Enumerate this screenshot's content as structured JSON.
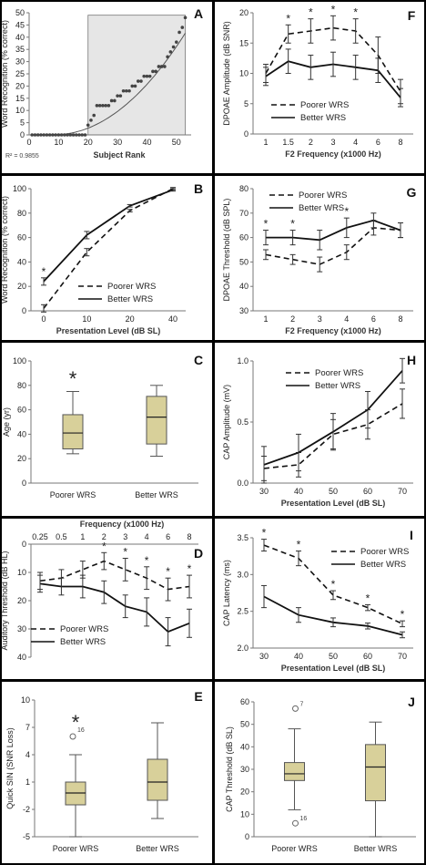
{
  "colors": {
    "box_fill": "#d8d09a",
    "box_stroke": "#555555",
    "shade": "#e6e6e6",
    "line": "#111111"
  },
  "charts": {
    "A": {
      "letter": "A",
      "type": "scatter",
      "xlabel": "Subject Rank",
      "ylabel": "Word Recognition (% correct)",
      "xlim": [
        0,
        55
      ],
      "ylim": [
        0,
        50
      ],
      "xticks": [
        "0",
        "10",
        "20",
        "30",
        "40",
        "50"
      ],
      "yticks": [
        "0",
        "5",
        "10",
        "15",
        "20",
        "25",
        "30",
        "35",
        "40",
        "45",
        "50"
      ],
      "r2": "R² = 0.9855",
      "shade_x": [
        20,
        53
      ],
      "shade_y": [
        0,
        49
      ],
      "x": [
        1,
        2,
        3,
        4,
        5,
        6,
        7,
        8,
        9,
        10,
        11,
        12,
        13,
        14,
        15,
        16,
        17,
        18,
        19,
        20,
        21,
        22,
        23,
        24,
        25,
        26,
        27,
        28,
        29,
        30,
        31,
        32,
        33,
        34,
        35,
        36,
        37,
        38,
        39,
        40,
        41,
        42,
        43,
        44,
        45,
        46,
        47,
        48,
        49,
        50,
        51,
        52,
        53
      ],
      "y": [
        0,
        0,
        0,
        0,
        0,
        0,
        0,
        0,
        0,
        0,
        0,
        0,
        0,
        0,
        0,
        0,
        0,
        0,
        0,
        4,
        6,
        8,
        12,
        12,
        12,
        12,
        12,
        14,
        14,
        16,
        16,
        18,
        18,
        18,
        20,
        20,
        22,
        22,
        24,
        24,
        24,
        26,
        26,
        28,
        28,
        28,
        32,
        34,
        36,
        38,
        42,
        44,
        48
      ]
    },
    "B": {
      "letter": "B",
      "type": "line",
      "xlabel": "Presentation Level (dB SL)",
      "ylabel": "Word Recognition (% correct)",
      "ylim": [
        0,
        100
      ],
      "categories": [
        "0",
        "10",
        "20",
        "40"
      ],
      "yticks": [
        "0",
        "20",
        "40",
        "60",
        "80",
        "100"
      ],
      "stars": [
        "*",
        "",
        "",
        ""
      ],
      "series": [
        {
          "name": "Poorer WRS",
          "dash": true,
          "values": [
            2,
            48,
            82,
            100
          ],
          "err": [
            3,
            3,
            1,
            1
          ]
        },
        {
          "name": "Better WRS",
          "dash": false,
          "values": [
            24,
            62,
            86,
            99
          ],
          "err": [
            3,
            3,
            1,
            1
          ]
        }
      ]
    },
    "C": {
      "letter": "C",
      "type": "box",
      "ylabel": "Age (yr)",
      "ylim": [
        0,
        100
      ],
      "yticks": [
        "0",
        "20",
        "40",
        "60",
        "80",
        "100"
      ],
      "categories": [
        "Poorer WRS",
        "Better WRS"
      ],
      "star": "*",
      "boxes": [
        {
          "min": 24,
          "q1": 28,
          "med": 41,
          "q3": 56,
          "max": 75
        },
        {
          "min": 22,
          "q1": 32,
          "med": 54,
          "q3": 71,
          "max": 80
        }
      ]
    },
    "D": {
      "letter": "D",
      "type": "line",
      "top_label": "Frequency (x1000 Hz)",
      "ylabel": "Auditory Threshold (dB HL)",
      "ylim": [
        0,
        40
      ],
      "categories": [
        "0.25",
        "0.5",
        "1",
        "2",
        "3",
        "4",
        "6",
        "8"
      ],
      "yticks": [
        "0",
        "10",
        "20",
        "30",
        "40"
      ],
      "stars": [
        "",
        "",
        "",
        "*",
        "*",
        "*",
        "*",
        "*"
      ],
      "series": [
        {
          "name": "Poorer WRS",
          "dash": true,
          "values": [
            13,
            12,
            9,
            6,
            9,
            12,
            16,
            15
          ],
          "err": [
            3,
            3,
            3,
            3,
            4,
            4,
            4,
            4
          ]
        },
        {
          "name": "Better WRS",
          "dash": false,
          "values": [
            14,
            15,
            15,
            17,
            22,
            24,
            31,
            28
          ],
          "err": [
            3,
            3,
            4,
            4,
            4,
            5,
            5,
            5
          ]
        }
      ]
    },
    "E": {
      "letter": "E",
      "type": "box",
      "ylabel": "Quick SIN (SNR Loss)",
      "ylim": [
        -5,
        10
      ],
      "yticks": [
        "-5",
        "-2",
        "1",
        "4",
        "7",
        "10"
      ],
      "categories": [
        "Poorer WRS",
        "Better WRS"
      ],
      "star": "*",
      "outlier_label": "16",
      "outlier": 6,
      "boxes": [
        {
          "min": -5,
          "q1": -1.5,
          "med": -0.2,
          "q3": 1,
          "max": 4
        },
        {
          "min": -3,
          "q1": -1,
          "med": 1,
          "q3": 3.5,
          "max": 7.5
        }
      ]
    },
    "F": {
      "letter": "F",
      "type": "line",
      "xlabel": "F2 Frequency (x1000 Hz)",
      "ylabel": "DPOAE Amplitude (dB SNR)",
      "ylim": [
        0,
        20
      ],
      "categories": [
        "1",
        "1.5",
        "2",
        "3",
        "4",
        "6",
        "8"
      ],
      "yticks": [
        "0",
        "5",
        "10",
        "15",
        "20"
      ],
      "stars": [
        "",
        "*",
        "*",
        "*",
        "*",
        "",
        ""
      ],
      "series": [
        {
          "name": "Poorer WRS",
          "dash": true,
          "values": [
            10,
            16.5,
            17,
            17.5,
            17,
            13,
            7
          ],
          "err": [
            1.5,
            1.5,
            2,
            2,
            2,
            3,
            2
          ]
        },
        {
          "name": "Better WRS",
          "dash": false,
          "values": [
            9.5,
            12,
            11,
            11.5,
            11,
            10.5,
            6
          ],
          "err": [
            1.5,
            2,
            2,
            2,
            2,
            2,
            1.5
          ]
        }
      ]
    },
    "G": {
      "letter": "G",
      "type": "line",
      "xlabel": "F2 Frequency (x1000 Hz)",
      "ylabel": "DPOAE Threshold (dB SPL)",
      "ylim": [
        30,
        80
      ],
      "categories": [
        "1",
        "2",
        "3",
        "4",
        "6",
        "8"
      ],
      "yticks": [
        "30",
        "40",
        "50",
        "60",
        "70",
        "80"
      ],
      "stars": [
        "*",
        "*",
        "",
        "*",
        "",
        ""
      ],
      "series": [
        {
          "name": "Poorer WRS",
          "dash": true,
          "values": [
            53,
            51,
            49,
            54,
            64,
            63
          ],
          "err": [
            2,
            2,
            3,
            3,
            3,
            3
          ]
        },
        {
          "name": "Better WRS",
          "dash": false,
          "values": [
            60,
            60,
            59,
            64,
            67,
            63
          ],
          "err": [
            3,
            3,
            4,
            4,
            3,
            3
          ]
        }
      ]
    },
    "H": {
      "letter": "H",
      "type": "line",
      "xlabel": "Presentation Level (dB SL)",
      "ylabel": "CAP Amplitude (mV)",
      "ylim": [
        0,
        1.0
      ],
      "categories": [
        "30",
        "40",
        "50",
        "60",
        "70"
      ],
      "yticks": [
        "0.0",
        "0.5",
        "1.0"
      ],
      "series": [
        {
          "name": "Poorer WRS",
          "dash": true,
          "values": [
            0.12,
            0.15,
            0.4,
            0.48,
            0.65
          ],
          "err": [
            0.1,
            0.1,
            0.12,
            0.12,
            0.12
          ]
        },
        {
          "name": "Better WRS",
          "dash": false,
          "values": [
            0.15,
            0.25,
            0.42,
            0.6,
            0.92
          ],
          "err": [
            0.15,
            0.15,
            0.15,
            0.15,
            0.1
          ]
        }
      ]
    },
    "I": {
      "letter": "I",
      "type": "line",
      "xlabel": "Presentation Level (dB SL)",
      "ylabel": "CAP Latency (ms)",
      "ylim": [
        2.0,
        3.5
      ],
      "categories": [
        "30",
        "40",
        "50",
        "60",
        "70"
      ],
      "yticks": [
        "2.0",
        "2.5",
        "3.0",
        "3.5"
      ],
      "stars": [
        "*",
        "*",
        "*",
        "*",
        "*"
      ],
      "series": [
        {
          "name": "Poorer WRS",
          "dash": true,
          "values": [
            3.4,
            3.22,
            2.72,
            2.55,
            2.33
          ],
          "err": [
            0.08,
            0.1,
            0.06,
            0.04,
            0.04
          ]
        },
        {
          "name": "Better WRS",
          "dash": false,
          "values": [
            2.7,
            2.45,
            2.35,
            2.3,
            2.18
          ],
          "err": [
            0.15,
            0.1,
            0.06,
            0.04,
            0.04
          ]
        }
      ]
    },
    "J": {
      "letter": "J",
      "type": "box",
      "ylabel": "CAP Threshold (dB SL)",
      "ylim": [
        0,
        60
      ],
      "yticks": [
        "0",
        "10",
        "20",
        "30",
        "40",
        "50",
        "60"
      ],
      "categories": [
        "Poorer WRS",
        "Better WRS"
      ],
      "outliers": [
        {
          "v": 57,
          "label": "7"
        },
        {
          "v": 6,
          "label": "16"
        }
      ],
      "boxes": [
        {
          "min": 12,
          "q1": 25,
          "med": 28,
          "q3": 33,
          "max": 48
        },
        {
          "min": 0,
          "q1": 16,
          "med": 31,
          "q3": 41,
          "max": 51
        }
      ]
    }
  }
}
